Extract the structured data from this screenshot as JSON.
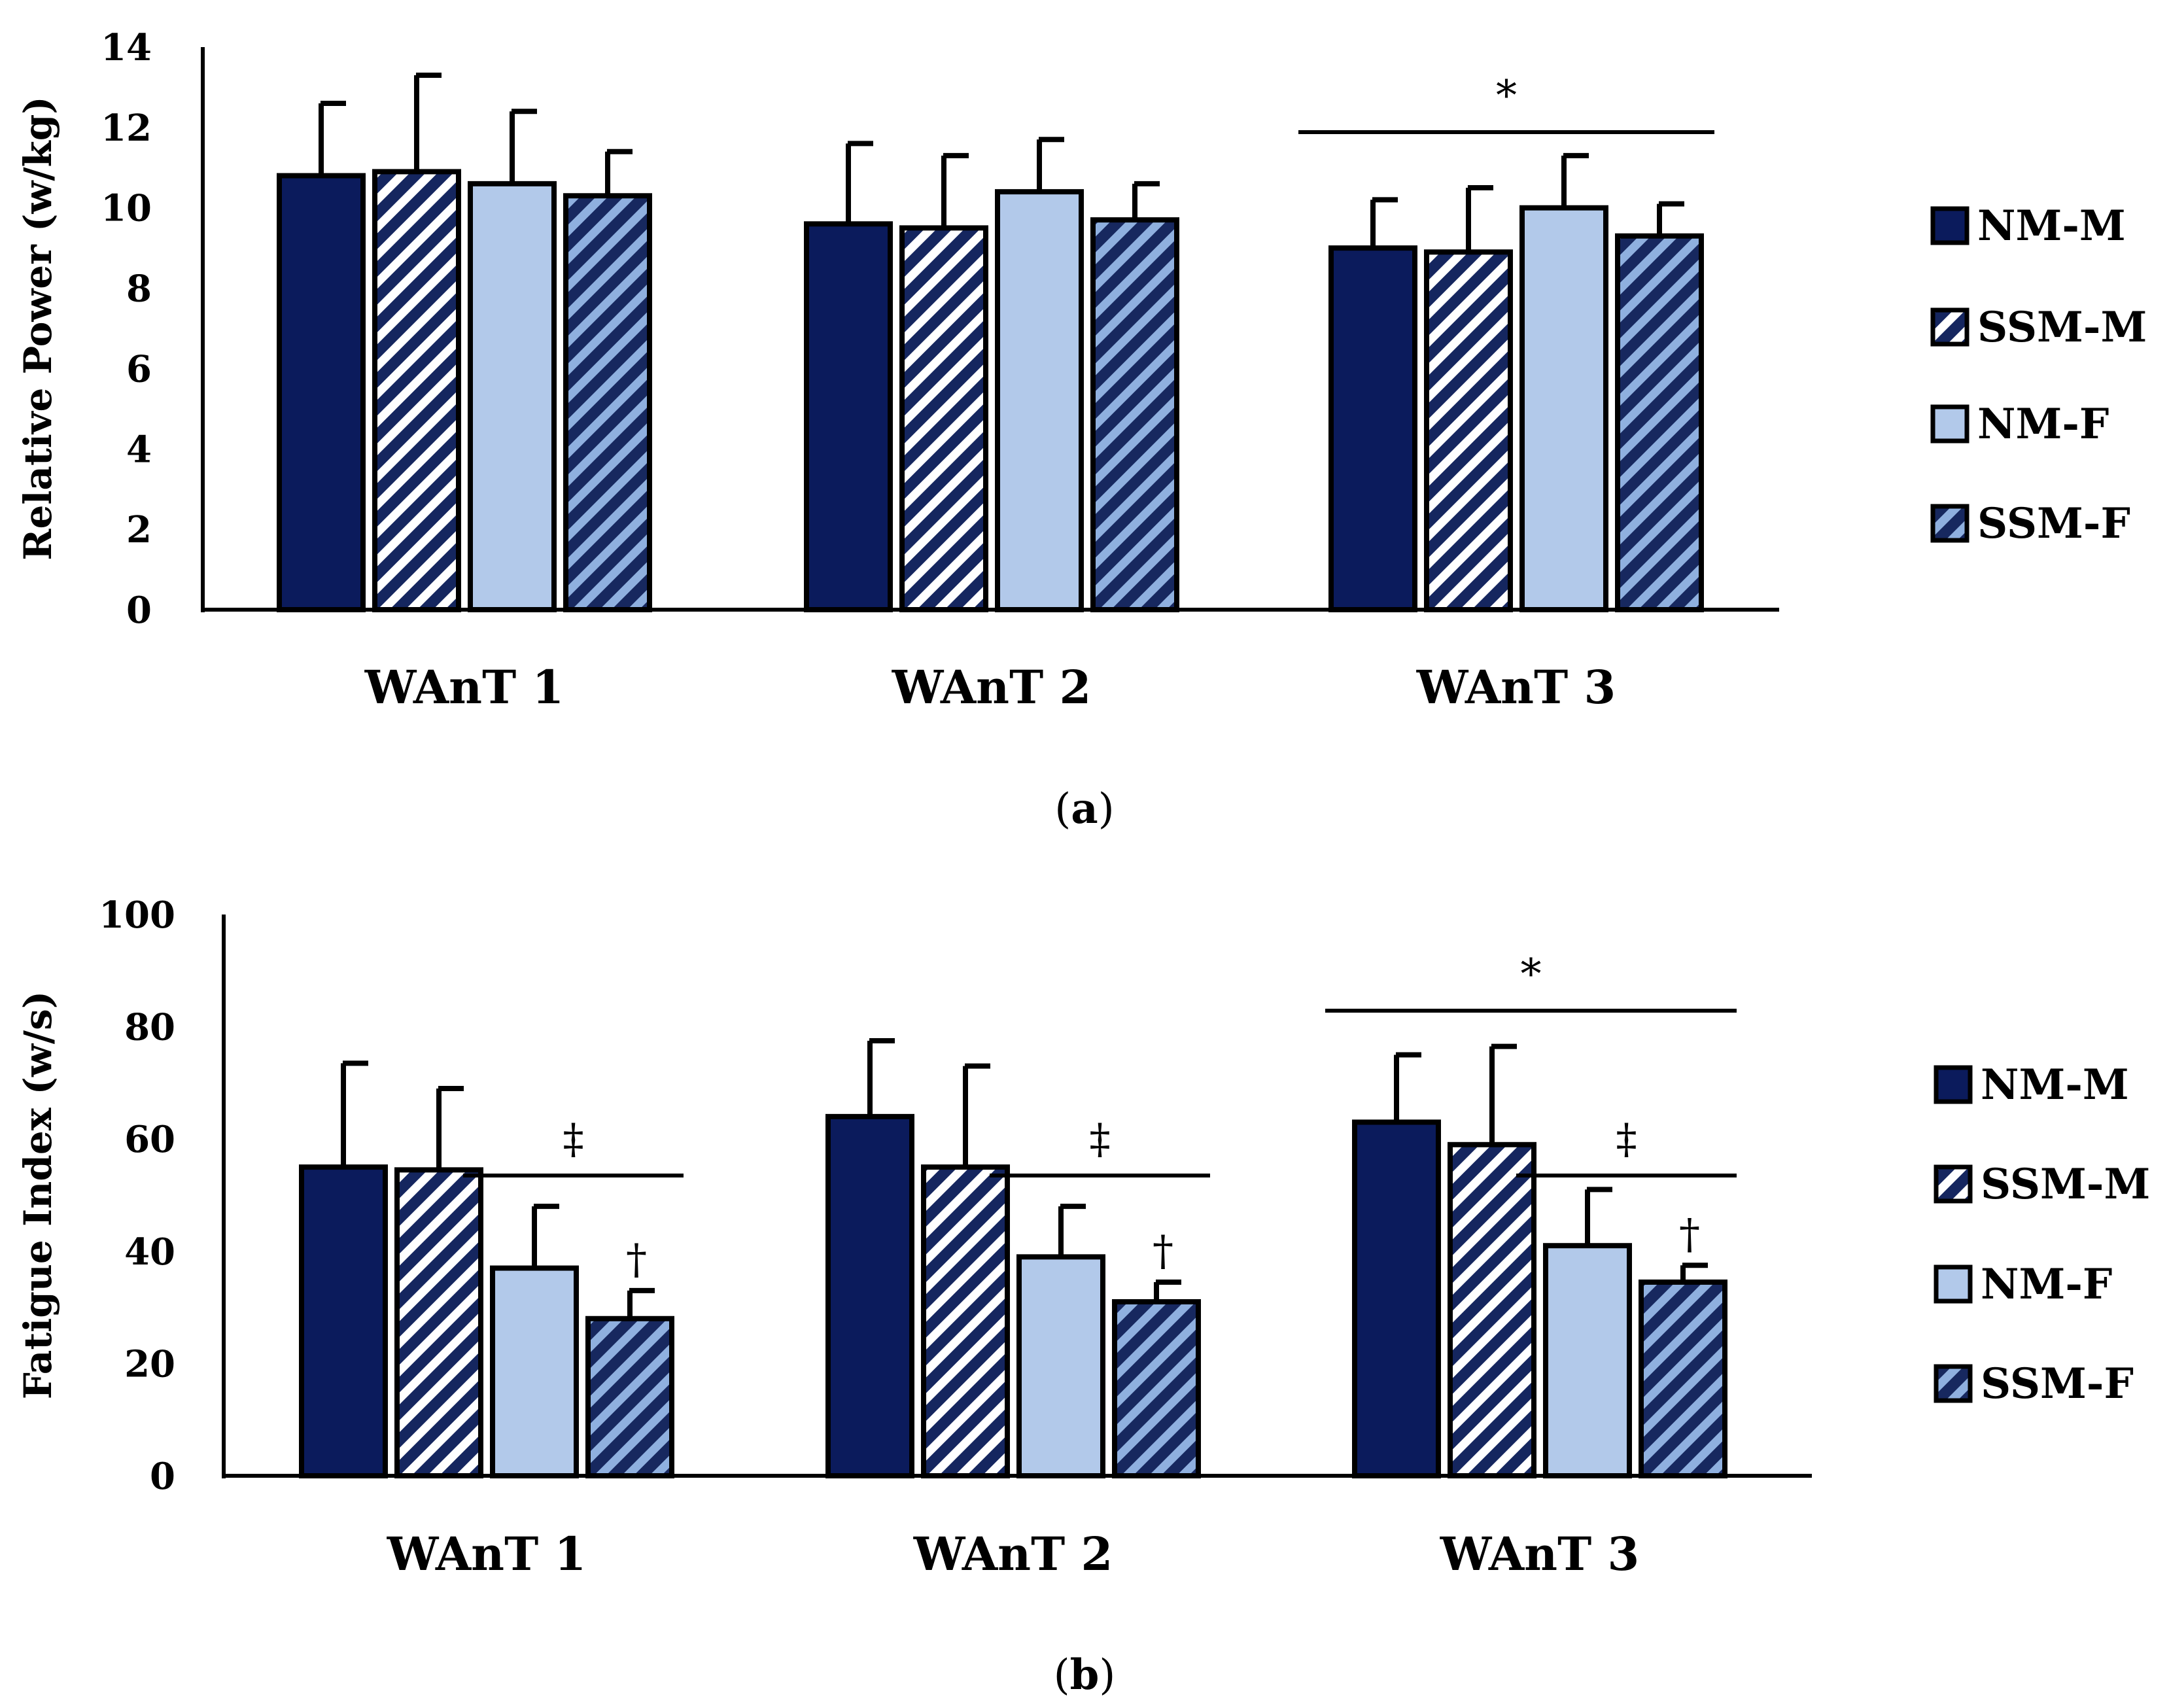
{
  "colors": {
    "nm_m": "#0b1b5c",
    "ssm_m_stripe": "#15265f",
    "nm_f": "#b2c9ea",
    "ssm_f_stripe_a": "#17285f",
    "ssm_f_stripe_b": "#8fb0df",
    "outline": "#000000",
    "background": "#ffffff"
  },
  "chart_data": [
    {
      "id": "a",
      "type": "bar",
      "title": "",
      "caption_letter": "a",
      "xlabel": "",
      "ylabel": "Relative Power (w/kg)",
      "ylim": [
        0,
        14
      ],
      "yticks": [
        0,
        2,
        4,
        6,
        8,
        10,
        12,
        14
      ],
      "categories": [
        "WAnT 1",
        "WAnT 2",
        "WAnT 3"
      ],
      "legend_position": "right",
      "series": [
        {
          "key": "nm_m",
          "name": "NM-M",
          "values": [
            10.8,
            9.6,
            9.0
          ],
          "errors": [
            1.8,
            2.0,
            1.2
          ]
        },
        {
          "key": "ssm_m",
          "name": "SSM-M",
          "values": [
            10.9,
            9.5,
            8.9
          ],
          "errors": [
            2.4,
            1.8,
            1.6
          ]
        },
        {
          "key": "nm_f",
          "name": "NM-F",
          "values": [
            10.6,
            10.4,
            10.0
          ],
          "errors": [
            1.8,
            1.3,
            1.3
          ]
        },
        {
          "key": "ssm_f",
          "name": "SSM-F",
          "values": [
            10.3,
            9.7,
            9.3
          ],
          "errors": [
            1.1,
            0.9,
            0.8
          ]
        }
      ],
      "annotations": [
        {
          "text": "*",
          "category": "WAnT 3",
          "series_from": 0,
          "series_to": 3
        }
      ]
    },
    {
      "id": "b",
      "type": "bar",
      "title": "",
      "caption_letter": "b",
      "xlabel": "",
      "ylabel": "Fatigue Index (w/s)",
      "ylim": [
        0,
        100
      ],
      "yticks": [
        0,
        20,
        40,
        60,
        80,
        100
      ],
      "categories": [
        "WAnT 1",
        "WAnT 2",
        "WAnT 3"
      ],
      "legend_position": "right",
      "series": [
        {
          "key": "nm_m",
          "name": "NM-M",
          "values": [
            55,
            64,
            63
          ],
          "errors": [
            18.5,
            13.5,
            12
          ]
        },
        {
          "key": "ssm_m",
          "name": "SSM-M",
          "values": [
            54.5,
            55,
            59
          ],
          "errors": [
            14.5,
            18,
            17.5
          ]
        },
        {
          "key": "nm_f",
          "name": "NM-F",
          "values": [
            37,
            39,
            41
          ],
          "errors": [
            11,
            9,
            10
          ]
        },
        {
          "key": "ssm_f",
          "name": "SSM-F",
          "values": [
            28,
            31,
            34.5
          ],
          "errors": [
            5,
            3.5,
            3
          ]
        }
      ],
      "annotations": [
        {
          "text": "*",
          "category": "WAnT 3",
          "series_from": 0,
          "series_to": 3
        },
        {
          "text": "‡",
          "category": "WAnT 1",
          "series_from": 2,
          "series_to": 3
        },
        {
          "text": "‡",
          "category": "WAnT 2",
          "series_from": 2,
          "series_to": 3
        },
        {
          "text": "‡",
          "category": "WAnT 3",
          "series_from": 2,
          "series_to": 3
        },
        {
          "text": "†",
          "category": "WAnT 1",
          "series_from": 3,
          "series_to": 3
        },
        {
          "text": "†",
          "category": "WAnT 2",
          "series_from": 3,
          "series_to": 3
        },
        {
          "text": "†",
          "category": "WAnT 3",
          "series_from": 3,
          "series_to": 3
        }
      ]
    }
  ]
}
